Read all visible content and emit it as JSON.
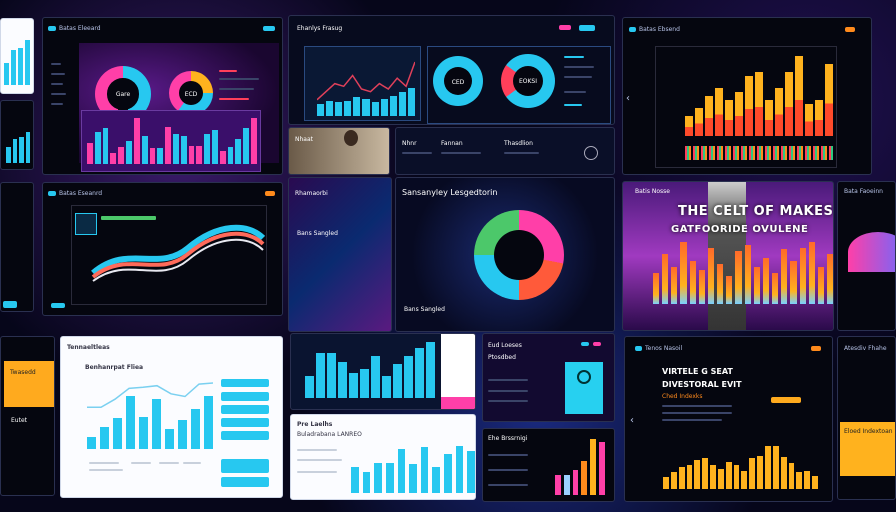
{
  "colors": {
    "cyan": "#27c8f0",
    "pink": "#ff3fa8",
    "orange": "#ff8a1c",
    "yellow": "#ffb21e",
    "red": "#ff4a2a",
    "purple": "#6a1aa0",
    "green": "#4cc86a"
  },
  "panel_top_left": {
    "bars": [
      0.45,
      0.7,
      0.75,
      0.9
    ]
  },
  "dash_donuts": {
    "title": "Batas Eleeard",
    "donut1_label": "Gare",
    "donut2_label": "ECD",
    "bars": [
      0.45,
      0.7,
      0.78,
      0.25,
      0.38,
      0.5,
      1.0,
      0.6,
      0.35,
      0.35,
      0.8,
      0.65,
      0.6,
      0.4,
      0.4,
      0.65,
      0.75,
      0.28,
      0.38,
      0.55,
      0.78,
      1.0
    ],
    "bar_colors": [
      "pink",
      "cyan",
      "cyan",
      "pink",
      "pink",
      "cyan",
      "pink",
      "cyan",
      "pink",
      "cyan",
      "pink",
      "cyan",
      "cyan",
      "pink",
      "pink",
      "cyan",
      "cyan",
      "pink",
      "cyan",
      "cyan",
      "cyan",
      "pink"
    ]
  },
  "dash_line": {
    "title": "Ehanlys Frasug",
    "donut1_label": "CED",
    "donut2_label": "EOKSI",
    "bars": [
      0.3,
      0.38,
      0.35,
      0.38,
      0.48,
      0.42,
      0.35,
      0.42,
      0.5,
      0.6,
      0.7
    ],
    "line": [
      0.3,
      0.45,
      0.6,
      0.55,
      0.75,
      0.5,
      0.45,
      0.6,
      0.5,
      0.7,
      0.55,
      1.0
    ]
  },
  "dash_orange": {
    "title": "Batas Ebsend",
    "bars": [
      0.25,
      0.35,
      0.5,
      0.6,
      0.45,
      0.55,
      0.75,
      0.8,
      0.45,
      0.6,
      0.8,
      1.0,
      0.4,
      0.45,
      0.9
    ]
  },
  "text_strip": {
    "labels": [
      "Nhnr",
      "Fannan",
      "Thasdlion"
    ],
    "photo_label": "Nhaat"
  },
  "dash_wave": {
    "title": "Batas Eseanrd"
  },
  "neon_panel": {
    "title": "Rhamaorbi",
    "heading": "Sansanyley Lesgedtorin",
    "sub": "Bans Sangled"
  },
  "poster": {
    "brand": "Batis Nosse",
    "headline1": "THE CELT OF MAKES",
    "headline2": "GATFOORIDE OVULENE",
    "bars": [
      0.5,
      0.8,
      0.6,
      1.0,
      0.7,
      0.55,
      0.9,
      0.65,
      0.45,
      0.85,
      0.95,
      0.6,
      0.75,
      0.5,
      0.88,
      0.7,
      0.9,
      1.0,
      0.6,
      0.8
    ]
  },
  "side_wave": {
    "title": "Bata Faoeinn"
  },
  "white_dash": {
    "title": "Tennaeltleas",
    "heading": "Benhanrpat Fliea",
    "bars": [
      0.2,
      0.35,
      0.5,
      0.85,
      0.52,
      0.8,
      0.33,
      0.46,
      0.64,
      0.85
    ],
    "line": [
      0.55,
      0.55,
      0.7,
      0.9,
      0.92,
      0.95,
      0.8,
      0.75,
      0.98,
      1.0
    ]
  },
  "cyan_dash": {
    "bars": [
      0.4,
      0.8,
      0.8,
      0.65,
      0.45,
      0.52,
      0.75,
      0.4,
      0.6,
      0.75,
      0.9,
      1.0
    ]
  },
  "white_small": {
    "title": "Pre Laelhs",
    "subtitle": "Buladrabana LANREO",
    "bars": [
      0.5,
      0.4,
      0.58,
      0.58,
      0.85,
      0.55,
      0.88,
      0.5,
      0.75,
      0.9,
      0.8
    ]
  },
  "purple_card": {
    "title": "Eud Loeses",
    "heading": "Ptosdbed"
  },
  "small_bars": {
    "title": "Ehe Brssrnigi",
    "bars": [
      0.35,
      0.35,
      0.45,
      0.6,
      1.0,
      0.95
    ],
    "bar_colors": [
      "pink",
      "#9ad0ff",
      "pink",
      "orange",
      "yellow",
      "pink"
    ]
  },
  "orange_dash": {
    "brand": "Tenos Nasoil",
    "headline1": "VIRTELE G SEAT",
    "headline2": "DIVESTORAL EVIT",
    "sub": "Ched Indexks",
    "bars": [
      0.28,
      0.38,
      0.5,
      0.55,
      0.65,
      0.7,
      0.55,
      0.45,
      0.62,
      0.55,
      0.4,
      0.7,
      0.75,
      0.98,
      0.98,
      0.72,
      0.6,
      0.38,
      0.42,
      0.3
    ]
  },
  "yellow_card": {
    "title": "Eloed Indextoan",
    "side_title": "Atesdiv Fhahe"
  },
  "left_orange": {
    "title": "Twasedd",
    "sub": "Eutet"
  }
}
